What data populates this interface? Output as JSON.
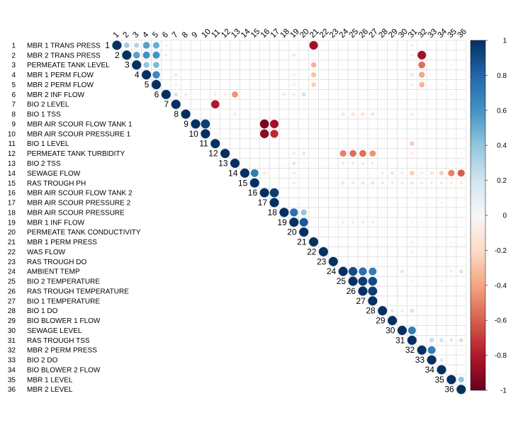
{
  "chart_data": {
    "type": "heatmap",
    "layout": "upper-triangular correlation matrix (circles)",
    "variables": [
      "MBR 1 TRANS PRESS",
      "MBR 2 TRANS PRESS",
      "PERMEATE TANK LEVEL",
      "MBR 1 PERM FLOW",
      "MBR 2 PERM FLOW",
      "MBR 2 INF FLOW",
      "BIO 2 LEVEL",
      "BIO 1 TSS",
      "MBR AIR SCOUR FLOW TANK 1",
      "MBR AIR SCOUR PRESSURE 1",
      "BIO 1 LEVEL",
      "PERMEATE TANK TURBIDITY",
      "BIO 2 TSS",
      "SEWAGE FLOW",
      "RAS TROUGH PH",
      "MBR AIR SCOUR FLOW TANK 2",
      "MBR AIR SCOUR PRESSURE 2",
      "MBR AIR SCOUR PRESSURE",
      "MBR 1 INF FLOW",
      "PERMEATE TANK CONDUCTIVITY",
      "MBR 1 PERM PRESS",
      "WAS FLOW",
      "RAS TROUGH DO",
      "AMBIENT TEMP",
      "BIO 2 TEMPERATURE",
      "RAS TROUGH TEMPERATURE",
      "BIO 1 TEMPERATURE",
      "BIO 1 DO",
      "BIO BLOWER 1 FLOW",
      "SEWAGE LEVEL",
      "RAS TROUGH TSS",
      "MBR 2 PERM PRESS",
      "BIO 2 DO",
      "BIO BLOWER 2 FLOW",
      "MBR 1 LEVEL",
      "MBR 2 LEVEL"
    ],
    "color_scale": {
      "min": -1,
      "max": 1,
      "ticks": [
        1,
        0.8,
        0.6,
        0.4,
        0.2,
        0,
        -0.2,
        -0.4,
        -0.6,
        -0.8,
        -1
      ],
      "negative_color": "#67001F",
      "neutral_color": "#F7F7F7",
      "positive_color": "#053061"
    },
    "correlations": [
      [
        1,
        2,
        0.35
      ],
      [
        1,
        3,
        0.3
      ],
      [
        1,
        4,
        0.55
      ],
      [
        1,
        5,
        0.5
      ],
      [
        1,
        6,
        0.08
      ],
      [
        1,
        21,
        -0.85
      ],
      [
        1,
        31,
        -0.1
      ],
      [
        2,
        3,
        0.55
      ],
      [
        2,
        4,
        0.6
      ],
      [
        2,
        5,
        0.6
      ],
      [
        2,
        6,
        0.08
      ],
      [
        2,
        19,
        0.12
      ],
      [
        2,
        21,
        0.05
      ],
      [
        2,
        31,
        -0.1
      ],
      [
        2,
        32,
        -0.85
      ],
      [
        3,
        4,
        0.4
      ],
      [
        3,
        5,
        0.45
      ],
      [
        3,
        21,
        -0.35
      ],
      [
        3,
        24,
        0.03
      ],
      [
        3,
        32,
        -0.55
      ],
      [
        3,
        35,
        -0.05
      ],
      [
        4,
        5,
        0.65
      ],
      [
        4,
        7,
        0.12
      ],
      [
        4,
        19,
        0.08
      ],
      [
        4,
        21,
        -0.3
      ],
      [
        4,
        31,
        -0.15
      ],
      [
        4,
        32,
        -0.4
      ],
      [
        4,
        35,
        -0.05
      ],
      [
        5,
        7,
        0.08
      ],
      [
        5,
        19,
        0.08
      ],
      [
        5,
        21,
        -0.25
      ],
      [
        5,
        31,
        -0.1
      ],
      [
        5,
        32,
        -0.35
      ],
      [
        5,
        34,
        -0.05
      ],
      [
        6,
        7,
        0.2
      ],
      [
        6,
        8,
        0.1
      ],
      [
        6,
        11,
        -0.1
      ],
      [
        6,
        12,
        -0.1
      ],
      [
        6,
        13,
        -0.45
      ],
      [
        6,
        18,
        0.1
      ],
      [
        6,
        19,
        0.1
      ],
      [
        6,
        20,
        0.2
      ],
      [
        6,
        35,
        0.05
      ],
      [
        7,
        11,
        -0.8
      ],
      [
        7,
        20,
        0.05
      ],
      [
        8,
        13,
        -0.1
      ],
      [
        8,
        24,
        -0.15
      ],
      [
        8,
        25,
        -0.15
      ],
      [
        8,
        26,
        -0.15
      ],
      [
        8,
        27,
        -0.15
      ],
      [
        8,
        31,
        0.1
      ],
      [
        9,
        10,
        0.95
      ],
      [
        9,
        16,
        -0.95
      ],
      [
        9,
        17,
        -0.85
      ],
      [
        10,
        16,
        -0.9
      ],
      [
        10,
        17,
        -0.75
      ],
      [
        11,
        31,
        -0.25
      ],
      [
        12,
        19,
        0.1
      ],
      [
        12,
        20,
        -0.15
      ],
      [
        12,
        24,
        -0.5
      ],
      [
        12,
        25,
        -0.55
      ],
      [
        12,
        26,
        -0.55
      ],
      [
        12,
        27,
        -0.45
      ],
      [
        12,
        31,
        -0.1
      ],
      [
        12,
        36,
        -0.05
      ],
      [
        13,
        19,
        0.15
      ],
      [
        13,
        20,
        0.05
      ],
      [
        13,
        24,
        -0.1
      ],
      [
        13,
        25,
        -0.1
      ],
      [
        13,
        26,
        -0.1
      ],
      [
        13,
        27,
        -0.1
      ],
      [
        13,
        36,
        -0.05
      ],
      [
        14,
        15,
        0.7
      ],
      [
        14,
        16,
        0.1
      ],
      [
        14,
        19,
        0.1
      ],
      [
        14,
        28,
        -0.1
      ],
      [
        14,
        29,
        -0.15
      ],
      [
        14,
        30,
        -0.1
      ],
      [
        14,
        31,
        -0.25
      ],
      [
        14,
        32,
        -0.1
      ],
      [
        14,
        33,
        -0.15
      ],
      [
        14,
        34,
        -0.25
      ],
      [
        14,
        35,
        -0.5
      ],
      [
        14,
        36,
        -0.6
      ],
      [
        15,
        19,
        0.1
      ],
      [
        15,
        24,
        -0.15
      ],
      [
        15,
        25,
        -0.1
      ],
      [
        15,
        26,
        -0.15
      ],
      [
        15,
        27,
        -0.15
      ],
      [
        15,
        28,
        -0.1
      ],
      [
        15,
        29,
        -0.1
      ],
      [
        15,
        30,
        -0.1
      ],
      [
        15,
        31,
        -0.15
      ],
      [
        15,
        32,
        -0.1
      ],
      [
        15,
        33,
        -0.1
      ],
      [
        15,
        34,
        -0.1
      ],
      [
        15,
        35,
        -0.1
      ],
      [
        15,
        36,
        -0.1
      ],
      [
        16,
        17,
        0.95
      ],
      [
        16,
        31,
        0.05
      ],
      [
        17,
        34,
        0.05
      ],
      [
        18,
        19,
        0.75
      ],
      [
        18,
        20,
        0.4
      ],
      [
        19,
        20,
        0.85
      ],
      [
        19,
        24,
        -0.1
      ],
      [
        19,
        25,
        -0.1
      ],
      [
        19,
        26,
        -0.1
      ],
      [
        19,
        27,
        -0.1
      ],
      [
        19,
        31,
        -0.05
      ],
      [
        19,
        32,
        -0.05
      ],
      [
        19,
        36,
        -0.05
      ],
      [
        21,
        31,
        0.08
      ],
      [
        21,
        35,
        0.05
      ],
      [
        22,
        31,
        0.08
      ],
      [
        24,
        25,
        0.9
      ],
      [
        24,
        26,
        0.75
      ],
      [
        24,
        27,
        0.7
      ],
      [
        24,
        30,
        0.15
      ],
      [
        24,
        35,
        -0.1
      ],
      [
        24,
        36,
        -0.2
      ],
      [
        25,
        26,
        0.95
      ],
      [
        25,
        27,
        0.9
      ],
      [
        25,
        31,
        0.05
      ],
      [
        25,
        34,
        -0.05
      ],
      [
        26,
        27,
        0.95
      ],
      [
        26,
        31,
        0.05
      ],
      [
        27,
        31,
        0.05
      ],
      [
        28,
        29,
        0.15
      ],
      [
        28,
        30,
        0.1
      ],
      [
        28,
        31,
        0.2
      ],
      [
        29,
        31,
        0.05
      ],
      [
        30,
        31,
        0.7
      ],
      [
        30,
        32,
        0.05
      ],
      [
        31,
        33,
        0.25
      ],
      [
        31,
        34,
        0.2
      ],
      [
        31,
        35,
        0.15
      ],
      [
        31,
        36,
        0.2
      ],
      [
        32,
        33,
        0.7
      ],
      [
        32,
        36,
        0.05
      ],
      [
        33,
        34,
        0.15
      ],
      [
        35,
        36,
        0.4
      ]
    ]
  }
}
